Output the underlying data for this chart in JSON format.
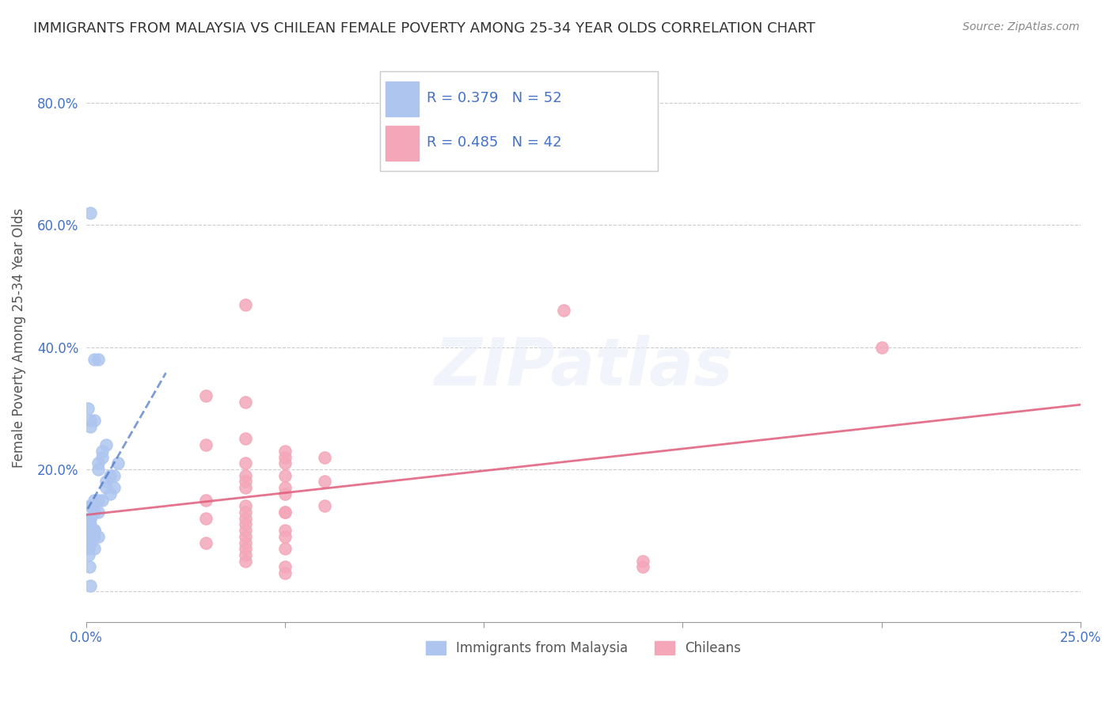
{
  "title": "IMMIGRANTS FROM MALAYSIA VS CHILEAN FEMALE POVERTY AMONG 25-34 YEAR OLDS CORRELATION CHART",
  "source": "Source: ZipAtlas.com",
  "ylabel": "Female Poverty Among 25-34 Year Olds",
  "yticks": [
    0.0,
    0.2,
    0.4,
    0.6,
    0.8
  ],
  "ytick_labels": [
    "",
    "20.0%",
    "40.0%",
    "60.0%",
    "80.0%"
  ],
  "xlim": [
    0.0,
    0.25
  ],
  "ylim": [
    -0.05,
    0.88
  ],
  "series1_label": "Immigrants from Malaysia",
  "series2_label": "Chileans",
  "series1_R": "0.379",
  "series1_N": "52",
  "series2_R": "0.485",
  "series2_N": "42",
  "series1_color": "#aec6ef",
  "series2_color": "#f4a7b9",
  "series1_line_color": "#4472c4",
  "series2_line_color": "#e05c7a",
  "series1_x": [
    0.001,
    0.002,
    0.001,
    0.001,
    0.002,
    0.003,
    0.004,
    0.003,
    0.005,
    0.004,
    0.003,
    0.005,
    0.006,
    0.005,
    0.007,
    0.006,
    0.008,
    0.007,
    0.004,
    0.003,
    0.002,
    0.001,
    0.001,
    0.002,
    0.003,
    0.002,
    0.001,
    0.0005,
    0.0005,
    0.001,
    0.002,
    0.001,
    0.003,
    0.002,
    0.001,
    0.002,
    0.001,
    0.0008,
    0.0005,
    0.001,
    0.002,
    0.001,
    0.0005,
    0.0008,
    0.001,
    0.002,
    0.001,
    0.0005,
    0.0008,
    0.001,
    0.0003,
    0.0005
  ],
  "series1_y": [
    0.62,
    0.28,
    0.28,
    0.27,
    0.38,
    0.38,
    0.22,
    0.2,
    0.24,
    0.23,
    0.21,
    0.18,
    0.19,
    0.17,
    0.17,
    0.16,
    0.21,
    0.19,
    0.15,
    0.15,
    0.15,
    0.14,
    0.14,
    0.13,
    0.13,
    0.13,
    0.12,
    0.12,
    0.11,
    0.12,
    0.1,
    0.1,
    0.09,
    0.09,
    0.1,
    0.1,
    0.08,
    0.09,
    0.09,
    0.1,
    0.1,
    0.08,
    0.08,
    0.09,
    0.08,
    0.07,
    0.11,
    0.06,
    0.04,
    0.01,
    0.3,
    0.07
  ],
  "series2_x": [
    0.04,
    0.2,
    0.12,
    0.04,
    0.03,
    0.03,
    0.04,
    0.05,
    0.05,
    0.06,
    0.04,
    0.05,
    0.04,
    0.05,
    0.06,
    0.04,
    0.05,
    0.04,
    0.03,
    0.05,
    0.06,
    0.05,
    0.04,
    0.04,
    0.05,
    0.04,
    0.03,
    0.04,
    0.04,
    0.05,
    0.04,
    0.05,
    0.03,
    0.04,
    0.04,
    0.05,
    0.04,
    0.04,
    0.05,
    0.14,
    0.05,
    0.14
  ],
  "series2_y": [
    0.47,
    0.4,
    0.46,
    0.31,
    0.32,
    0.24,
    0.25,
    0.23,
    0.22,
    0.22,
    0.21,
    0.21,
    0.19,
    0.19,
    0.18,
    0.18,
    0.17,
    0.17,
    0.15,
    0.16,
    0.14,
    0.13,
    0.14,
    0.13,
    0.13,
    0.12,
    0.12,
    0.11,
    0.1,
    0.1,
    0.09,
    0.09,
    0.08,
    0.08,
    0.07,
    0.07,
    0.06,
    0.05,
    0.04,
    0.04,
    0.03,
    0.05
  ],
  "watermark": "ZIPatlas",
  "background_color": "#ffffff",
  "grid_color": "#cccccc",
  "tick_color": "#4472c4",
  "title_color": "#333333"
}
